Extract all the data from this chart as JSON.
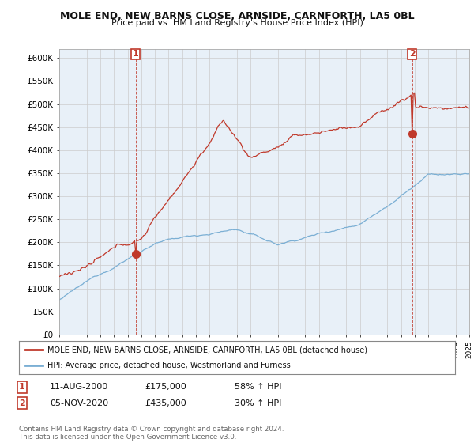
{
  "title": "MOLE END, NEW BARNS CLOSE, ARNSIDE, CARNFORTH, LA5 0BL",
  "subtitle": "Price paid vs. HM Land Registry's House Price Index (HPI)",
  "ylim": [
    0,
    620000
  ],
  "yticks": [
    0,
    50000,
    100000,
    150000,
    200000,
    250000,
    300000,
    350000,
    400000,
    450000,
    500000,
    550000,
    600000
  ],
  "ytick_labels": [
    "£0",
    "£50K",
    "£100K",
    "£150K",
    "£200K",
    "£250K",
    "£300K",
    "£350K",
    "£400K",
    "£450K",
    "£500K",
    "£550K",
    "£600K"
  ],
  "hpi_color": "#7bafd4",
  "price_color": "#c0392b",
  "chart_bg": "#e8f0f8",
  "legend_line1": "MOLE END, NEW BARNS CLOSE, ARNSIDE, CARNFORTH, LA5 0BL (detached house)",
  "legend_line2": "HPI: Average price, detached house, Westmorland and Furness",
  "note1_date": "11-AUG-2000",
  "note1_price": "£175,000",
  "note1_hpi": "58% ↑ HPI",
  "note2_date": "05-NOV-2020",
  "note2_price": "£435,000",
  "note2_hpi": "30% ↑ HPI",
  "footer": "Contains HM Land Registry data © Crown copyright and database right 2024.\nThis data is licensed under the Open Government Licence v3.0.",
  "background_color": "#ffffff",
  "grid_color": "#cccccc",
  "sale1_t": 2000.583,
  "sale1_price": 175000,
  "sale2_t": 2020.833,
  "sale2_price": 435000
}
